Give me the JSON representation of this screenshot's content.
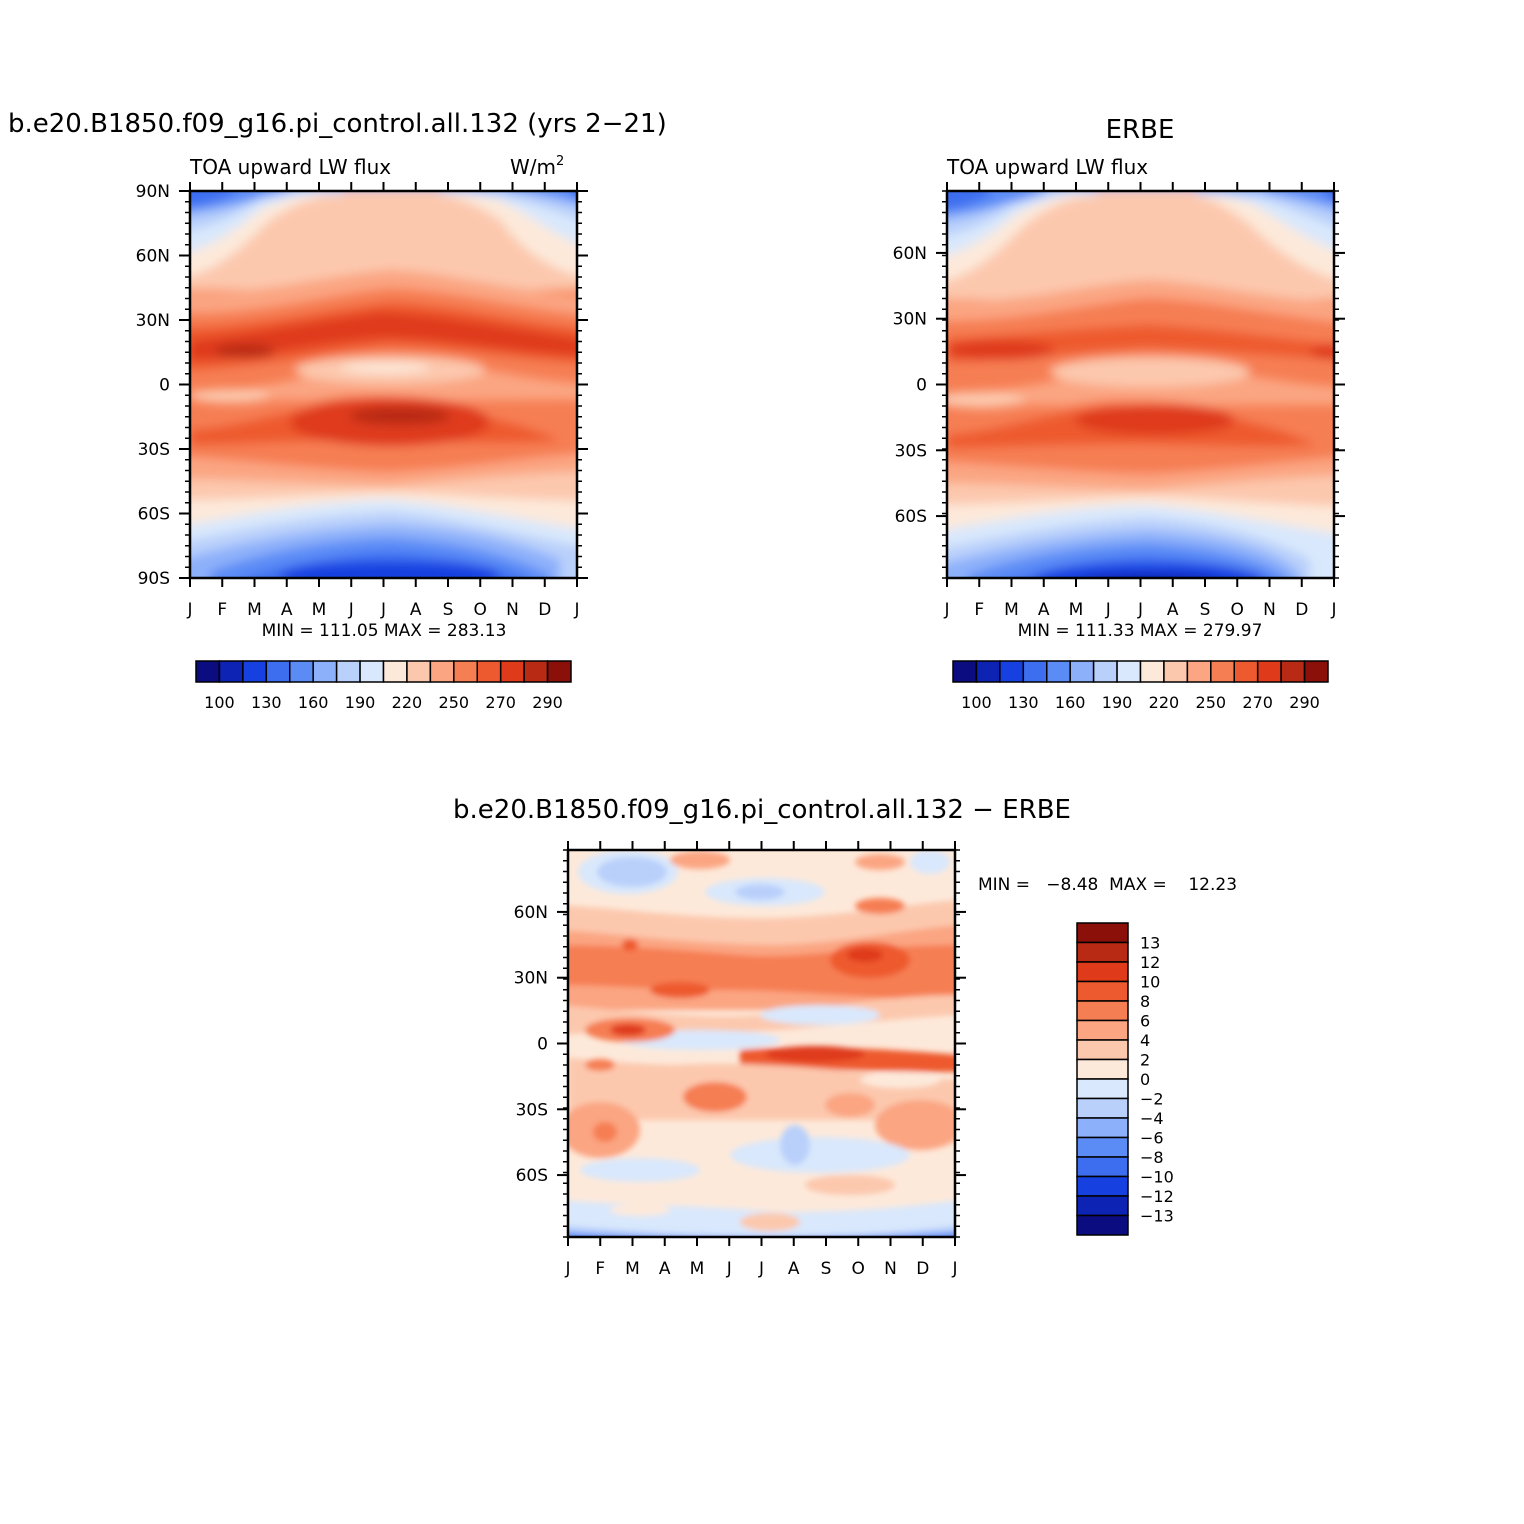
{
  "top_left": {
    "title": "b.e20.B1850.f09_g16.pi_control.all.132 (yrs 2−21)",
    "left_string": "TOA upward LW flux",
    "right_string_base": "W/m",
    "right_string_sup": "2",
    "minmax": "MIN = 111.05 MAX = 283.13"
  },
  "top_right": {
    "title": "ERBE",
    "left_string": "TOA upward LW flux",
    "minmax": "MIN = 111.33 MAX = 279.97"
  },
  "bottom": {
    "title": "b.e20.B1850.f09_g16.pi_control.all.132 − ERBE",
    "minmax": "MIN =   −8.48  MAX =    12.23"
  },
  "months": [
    "J",
    "F",
    "M",
    "A",
    "M",
    "J",
    "J",
    "A",
    "S",
    "O",
    "N",
    "D",
    "J"
  ],
  "lat_labels_full": [
    "90N",
    "60N",
    "30N",
    "0",
    "30S",
    "60S",
    "90S"
  ],
  "lat_labels_obs": [
    "60N",
    "30N",
    "0",
    "30S",
    "60S"
  ],
  "lat_labels_diff": [
    "60N",
    "30N",
    "0",
    "30S",
    "60S"
  ],
  "abs_colorbar": {
    "colors": [
      "#0b0c7f",
      "#0c23b4",
      "#1641e0",
      "#3d6ef0",
      "#5b8cf6",
      "#8db0fa",
      "#b9d0fb",
      "#d9e8fc",
      "#fde9da",
      "#fcc8ad",
      "#fba582",
      "#f67e53",
      "#ee5a2f",
      "#df3a1a",
      "#b92a14",
      "#8a1009"
    ],
    "labels": [
      "100",
      "130",
      "160",
      "190",
      "220",
      "250",
      "270",
      "290"
    ]
  },
  "diff_colorbar": {
    "colors": [
      "#0b0c7f",
      "#0c23b4",
      "#1641e0",
      "#3d6ef0",
      "#5b8cf6",
      "#8db0fa",
      "#b9d0fb",
      "#d9e8fc",
      "#fde9da",
      "#fcc8ad",
      "#fba582",
      "#f67e53",
      "#ee5a2f",
      "#df3a1a",
      "#b92a14",
      "#8a1009"
    ],
    "labels": [
      "13",
      "12",
      "10",
      "8",
      "6",
      "4",
      "2",
      "0",
      "−2",
      "−4",
      "−6",
      "−8",
      "−10",
      "−12",
      "−13"
    ]
  },
  "chart_data": [
    {
      "type": "heatmap",
      "title": "b.e20.B1850.f09_g16.pi_control.all.132 (yrs 2−21)",
      "variable": "TOA upward LW flux",
      "units": "W/m2",
      "x": [
        "J",
        "F",
        "M",
        "A",
        "M",
        "J",
        "J",
        "A",
        "S",
        "O",
        "N",
        "D",
        "J"
      ],
      "y_range": [
        -90,
        90
      ],
      "min": 111.05,
      "max": 283.13,
      "colorbar_levels": [
        100,
        130,
        160,
        190,
        220,
        250,
        270,
        290
      ]
    },
    {
      "type": "heatmap",
      "title": "ERBE",
      "variable": "TOA upward LW flux",
      "x": [
        "J",
        "F",
        "M",
        "A",
        "M",
        "J",
        "J",
        "A",
        "S",
        "O",
        "N",
        "D",
        "J"
      ],
      "min": 111.33,
      "max": 279.97,
      "colorbar_levels": [
        100,
        130,
        160,
        190,
        220,
        250,
        270,
        290
      ]
    },
    {
      "type": "heatmap",
      "title": "b.e20.B1850.f09_g16.pi_control.all.132 − ERBE",
      "x": [
        "J",
        "F",
        "M",
        "A",
        "M",
        "J",
        "J",
        "A",
        "S",
        "O",
        "N",
        "D",
        "J"
      ],
      "min": -8.48,
      "max": 12.23,
      "colorbar_levels": [
        13,
        12,
        10,
        8,
        6,
        4,
        2,
        0,
        -2,
        -4,
        -6,
        -8,
        -10,
        -12,
        -13
      ]
    }
  ]
}
